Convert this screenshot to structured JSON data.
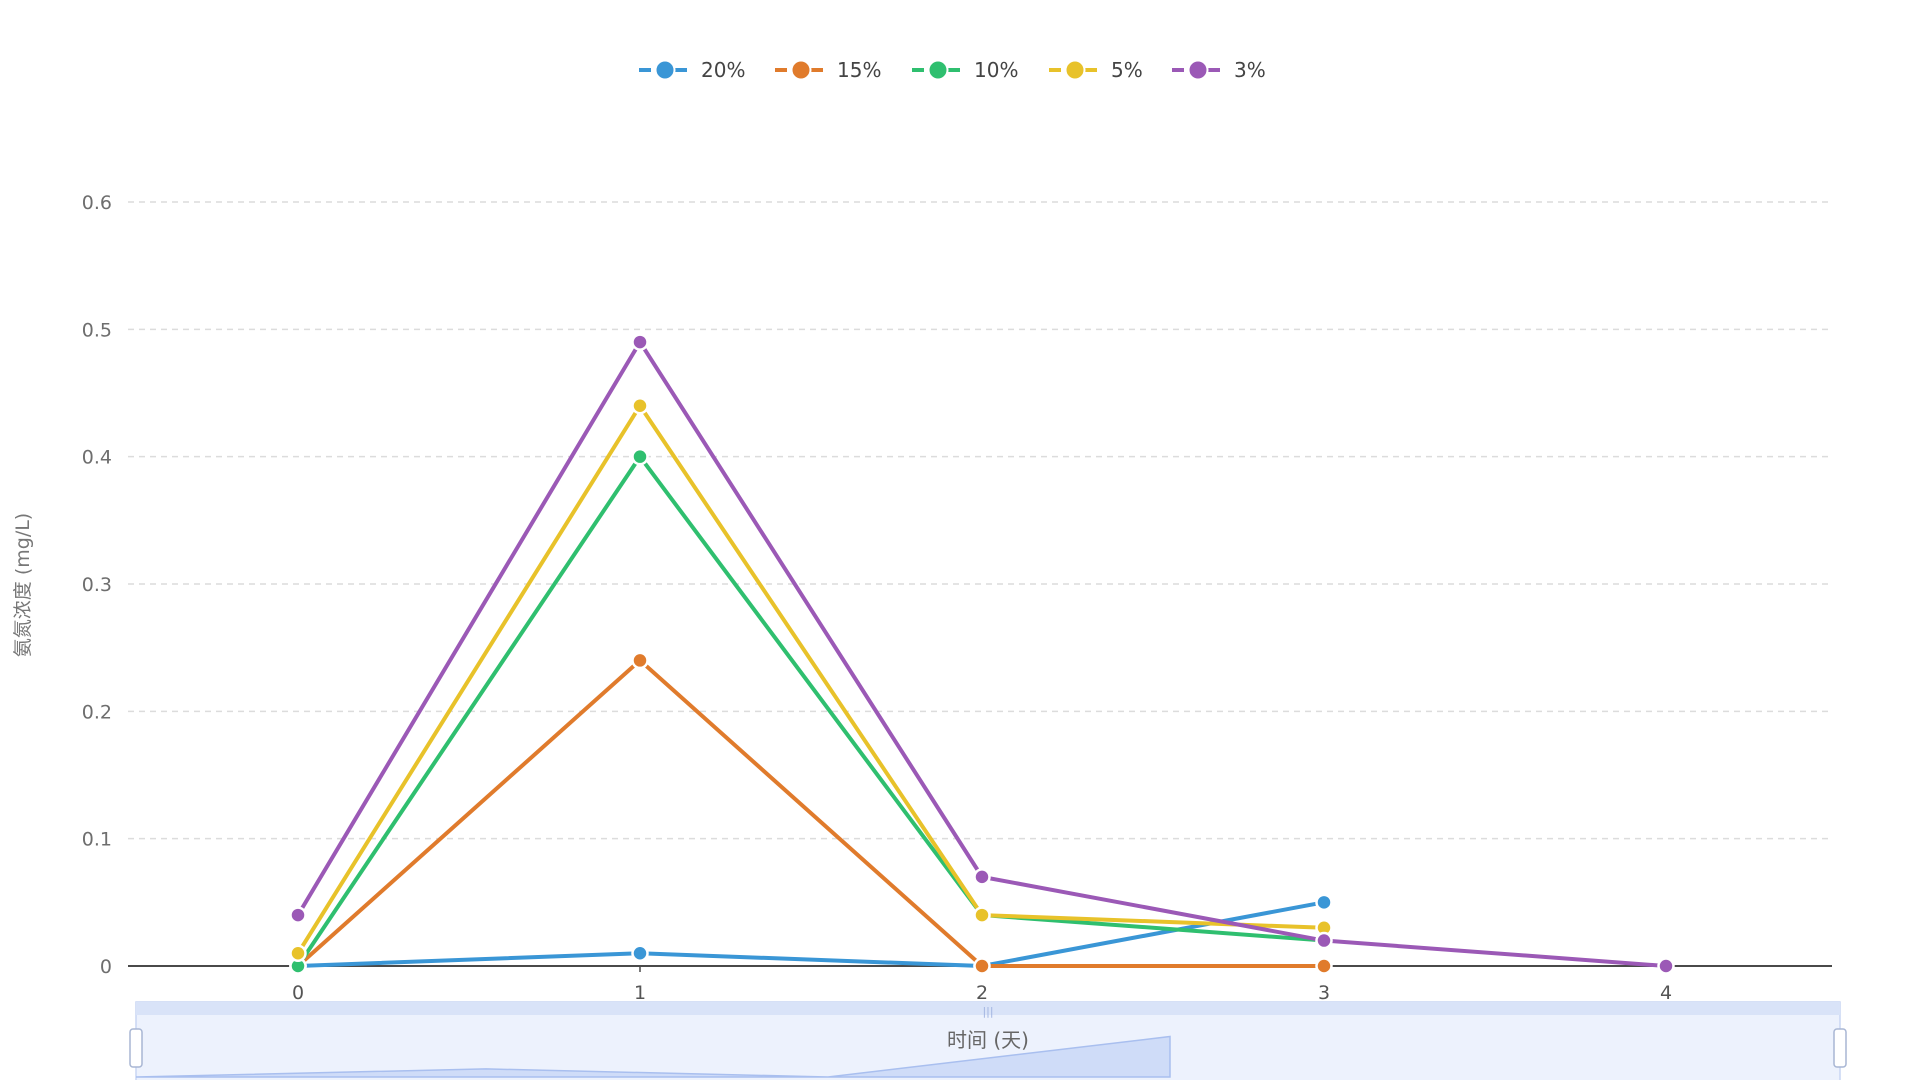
{
  "chart_data": {
    "type": "line",
    "title": "",
    "xlabel": "时间 (天)",
    "ylabel": "氨氮浓度 (mg/L)",
    "x": [
      0,
      1,
      2,
      3,
      4
    ],
    "ylim": [
      0,
      0.6
    ],
    "yticks": [
      0,
      0.1,
      0.2,
      0.3,
      0.4,
      0.5,
      0.6
    ],
    "grid": true,
    "legend_position": "top-center",
    "series": [
      {
        "name": "20%",
        "color": "#3a96d6",
        "values": [
          0,
          0.01,
          0,
          0.05,
          null
        ]
      },
      {
        "name": "15%",
        "color": "#e07b2c",
        "values": [
          0,
          0.24,
          0,
          0,
          null
        ]
      },
      {
        "name": "10%",
        "color": "#2fbf6f",
        "values": [
          0,
          0.4,
          0.04,
          0.02,
          null
        ]
      },
      {
        "name": "5%",
        "color": "#e8c22a",
        "values": [
          0.01,
          0.44,
          0.04,
          0.03,
          null
        ]
      },
      {
        "name": "3%",
        "color": "#9b59b6",
        "values": [
          0.04,
          0.49,
          0.07,
          0.02,
          0
        ]
      }
    ]
  },
  "data_zoom": {
    "handle_label": "|||"
  }
}
